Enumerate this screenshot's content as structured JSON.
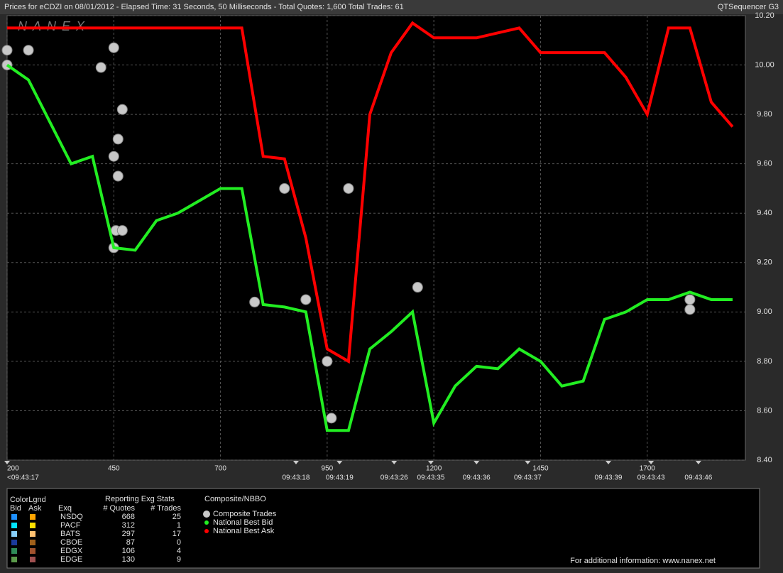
{
  "chart_data": {
    "type": "line",
    "title": "Prices for  eCDZI  on  08/01/2012  -  Elapsed Time: 31 Seconds, 50 Milliseconds  -  Total Quotes: 1,600  Total Trades: 61",
    "source": "QTSequencer G3",
    "watermark": "NANEX",
    "x": [
      200,
      250,
      300,
      350,
      400,
      450,
      500,
      550,
      600,
      650,
      700,
      750,
      800,
      850,
      900,
      950,
      1000,
      1050,
      1100,
      1150,
      1200,
      1250,
      1300,
      1350,
      1400,
      1450,
      1500,
      1550,
      1600,
      1650,
      1700,
      1750,
      1800,
      1850,
      1900
    ],
    "series": [
      {
        "name": "Composite Trades",
        "color": "#c8c8c8",
        "x": [
          200,
          200,
          250,
          420,
          450,
          460,
          470,
          450,
          460,
          455,
          470,
          450,
          780,
          850,
          900,
          1000,
          950,
          960,
          1162,
          1800,
          1800
        ],
        "values": [
          10.06,
          10.0,
          10.06,
          9.99,
          9.63,
          9.7,
          9.82,
          10.07,
          9.55,
          9.33,
          9.33,
          9.26,
          9.04,
          9.5,
          9.05,
          9.5,
          8.8,
          8.57,
          9.1,
          9.05,
          9.01
        ]
      },
      {
        "name": "National Best Bid",
        "color": "#22ee22",
        "values": [
          10.0,
          9.94,
          9.77,
          9.6,
          9.63,
          9.26,
          9.25,
          9.37,
          9.4,
          9.45,
          9.5,
          9.5,
          9.03,
          9.02,
          9.0,
          8.52,
          8.52,
          8.85,
          8.92,
          9.0,
          8.55,
          8.7,
          8.78,
          8.77,
          8.85,
          8.8,
          8.7,
          8.72,
          8.97,
          9.0,
          9.05,
          9.05,
          9.08,
          9.05,
          9.05
        ]
      },
      {
        "name": "National Best Ask",
        "color": "#ff0000",
        "values": [
          10.15,
          10.15,
          10.15,
          10.15,
          10.15,
          10.15,
          10.15,
          10.15,
          10.15,
          10.15,
          10.15,
          10.15,
          9.63,
          9.62,
          9.3,
          8.85,
          8.8,
          9.8,
          10.05,
          10.17,
          10.11,
          10.11,
          10.11,
          10.13,
          10.15,
          10.05,
          10.05,
          10.05,
          10.05,
          9.95,
          9.8,
          10.15,
          10.15,
          9.85,
          9.75
        ]
      }
    ],
    "xlim": [
      200,
      1930
    ],
    "xticks": [
      200,
      450,
      700,
      950,
      1200,
      1450,
      1700
    ],
    "time_ticks": [
      {
        "value": 200,
        "label": "<09:43:17"
      },
      {
        "value": 877,
        "label": "09:43:18"
      },
      {
        "value": 979,
        "label": "09:43:19"
      },
      {
        "value": 1107,
        "label": "09:43:26"
      },
      {
        "value": 1193,
        "label": "09:43:35"
      },
      {
        "value": 1300,
        "label": "09:43:36"
      },
      {
        "value": 1420,
        "label": "09:43:37"
      },
      {
        "value": 1609,
        "label": "09:43:39"
      },
      {
        "value": 1709,
        "label": "09:43:43"
      },
      {
        "value": 1820,
        "label": "09:43:46"
      }
    ],
    "ylim": [
      8.4,
      10.2
    ],
    "yticks": [
      {
        "value": 8.4,
        "label": "8.40"
      },
      {
        "value": 8.6,
        "label": "8.60"
      },
      {
        "value": 8.8,
        "label": "8.80"
      },
      {
        "value": 9.0,
        "label": "9.00"
      },
      {
        "value": 9.2,
        "label": "9.20"
      },
      {
        "value": 9.4,
        "label": "9.40"
      },
      {
        "value": 9.6,
        "label": "9.60"
      },
      {
        "value": 9.8,
        "label": "9.80"
      },
      {
        "value": 10.0,
        "label": "10.00"
      },
      {
        "value": 10.2,
        "label": "10.20"
      }
    ],
    "grid": true
  },
  "legend_panel": {
    "color_title": "ColorLgnd",
    "bid": "Bid",
    "ask": "Ask",
    "exq": "Exq",
    "stats_title": "Reporting Exg Stats",
    "quotes": "# Quotes",
    "trades": "# Trades",
    "composite_title": "Composite/NBBO",
    "rows": [
      {
        "exq": "NSDQ",
        "bid_color": "#1e90ff",
        "ask_color": "#ffa500",
        "quotes": 668,
        "trades": 25
      },
      {
        "exq": "PACF",
        "bid_color": "#00e5ff",
        "ask_color": "#ffe000",
        "quotes": 312,
        "trades": 1
      },
      {
        "exq": "BATS",
        "bid_color": "#87cefa",
        "ask_color": "#ffc070",
        "quotes": 297,
        "trades": 17
      },
      {
        "exq": "CBOE",
        "bid_color": "#1a3a9a",
        "ask_color": "#a0601a",
        "quotes": 87,
        "trades": 0
      },
      {
        "exq": "EDGX",
        "bid_color": "#2e8b57",
        "ask_color": "#a0522d",
        "quotes": 106,
        "trades": 4
      },
      {
        "exq": "EDGE",
        "bid_color": "#5a9a4a",
        "ask_color": "#a05050",
        "quotes": 130,
        "trades": 9
      }
    ],
    "footer": "For additional information: www.nanex.net"
  }
}
